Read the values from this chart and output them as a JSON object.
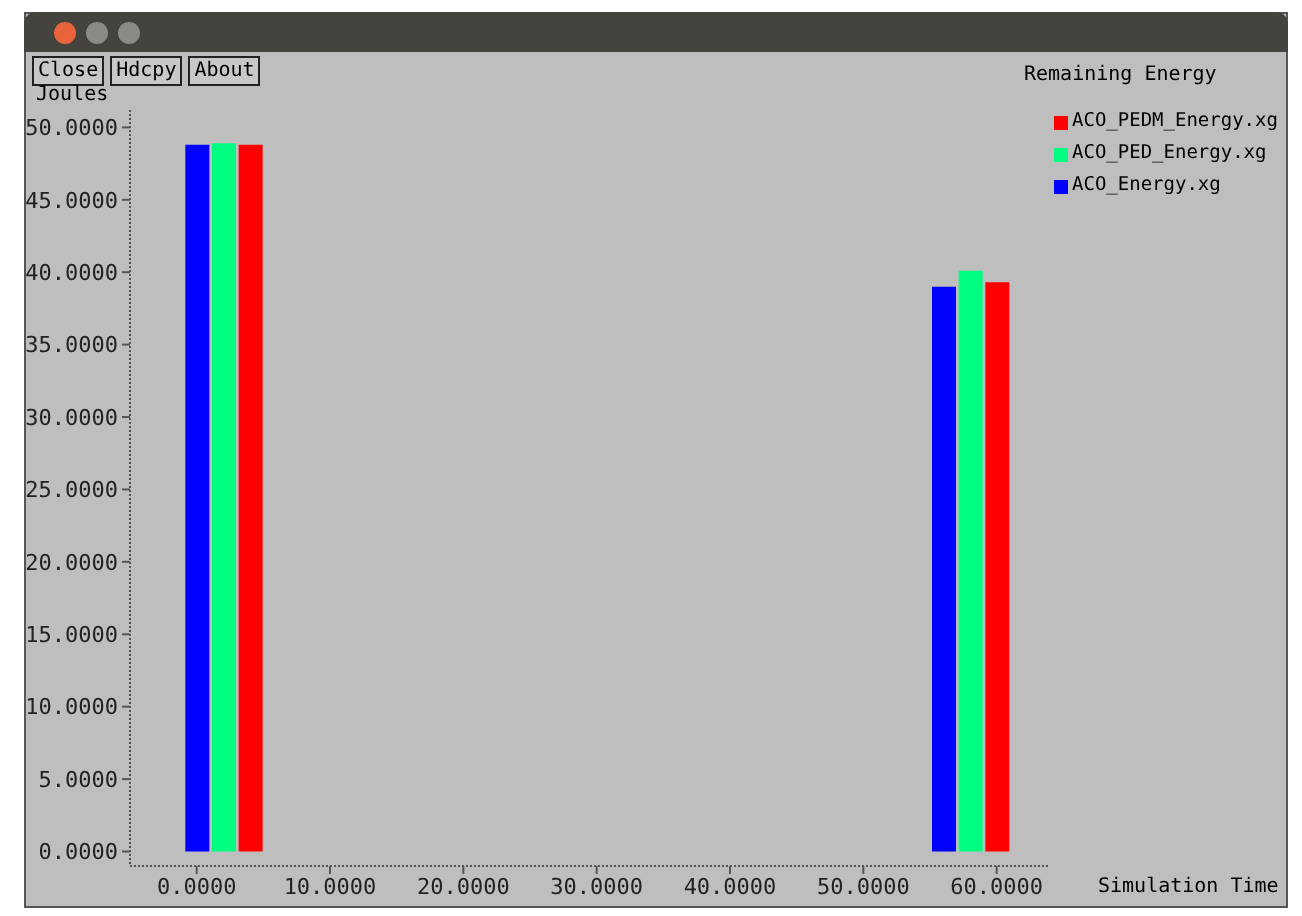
{
  "chart_data": {
    "type": "bar",
    "title": "Remaining Energy",
    "xlabel": "Simulation Time",
    "ylabel": "Joules",
    "annotations": [
      "Close",
      "Hdcpy",
      "About"
    ],
    "series": [
      {
        "name": "ACO_PEDM_Energy.xg",
        "color": "#ff0000",
        "x": [
          4,
          60
        ],
        "values": [
          48.8,
          39.3
        ]
      },
      {
        "name": "ACO_PED_Energy.xg",
        "color": "#00ff80",
        "x": [
          2,
          58
        ],
        "values": [
          48.9,
          40.1
        ]
      },
      {
        "name": "ACO_Energy.xg",
        "color": "#0000ff",
        "x": [
          0,
          56
        ],
        "values": [
          48.8,
          39.0
        ]
      }
    ],
    "xlim": [
      -5,
      64
    ],
    "ylim": [
      -1,
      51.2
    ],
    "xticks": [
      {
        "value": 0,
        "label": "0.0000"
      },
      {
        "value": 10,
        "label": "10.0000"
      },
      {
        "value": 20,
        "label": "20.0000"
      },
      {
        "value": 30,
        "label": "30.0000"
      },
      {
        "value": 40,
        "label": "40.0000"
      },
      {
        "value": 50,
        "label": "50.0000"
      },
      {
        "value": 60,
        "label": "60.0000"
      }
    ],
    "yticks": [
      {
        "value": 0,
        "label": "0.0000"
      },
      {
        "value": 5,
        "label": "5.0000"
      },
      {
        "value": 10,
        "label": "10.0000"
      },
      {
        "value": 15,
        "label": "15.0000"
      },
      {
        "value": 20,
        "label": "20.0000"
      },
      {
        "value": 25,
        "label": "25.0000"
      },
      {
        "value": 30,
        "label": "30.0000"
      },
      {
        "value": 35,
        "label": "35.0000"
      },
      {
        "value": 40,
        "label": "40.0000"
      },
      {
        "value": 45,
        "label": "45.0000"
      },
      {
        "value": 50,
        "label": "50.0000"
      }
    ],
    "legend": "top right",
    "grid": false
  }
}
